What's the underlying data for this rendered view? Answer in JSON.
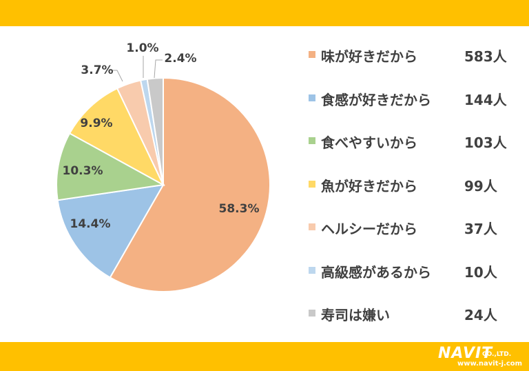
{
  "chart_data": {
    "type": "pie",
    "start_angle_deg": 0,
    "direction": "clockwise",
    "categories": [
      "味が好きだから",
      "食感が好きだから",
      "食べやすいから",
      "魚が好きだから",
      "ヘルシーだから",
      "高級感があるから",
      "寿司は嫌い"
    ],
    "values": [
      583,
      144,
      103,
      99,
      37,
      10,
      24
    ],
    "percent_labels": [
      "58.3%",
      "14.4%",
      "10.3%",
      "9.9%",
      "3.7%",
      "1.0%",
      "2.4%"
    ],
    "count_labels": [
      "583人",
      "144人",
      "103人",
      "99人",
      "37人",
      "10人",
      "24人"
    ],
    "colors": [
      "#f4b183",
      "#9dc3e6",
      "#a9d18e",
      "#ffd966",
      "#f8cbad",
      "#bdd7ee",
      "#c9c9c9"
    ],
    "legend_position": "right"
  },
  "logo": {
    "name": "NAVIT",
    "suffix": "CO.,LTD.",
    "url": "www.navit-j.com"
  },
  "colors": {
    "band": "#ffc000",
    "text": "#404040"
  }
}
